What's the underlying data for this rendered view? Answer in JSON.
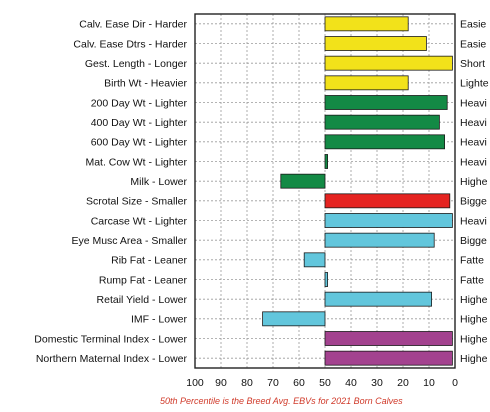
{
  "chart_data": {
    "type": "bar",
    "orientation": "horizontal",
    "x_axis": {
      "reversed": true,
      "xlim": [
        100,
        0
      ],
      "ticks": [
        100,
        90,
        80,
        70,
        60,
        50,
        40,
        30,
        20,
        10,
        0
      ],
      "tick_labels": [
        "100",
        "90",
        "80",
        "70",
        "60",
        "50",
        "40",
        "30",
        "20",
        "10",
        "0"
      ]
    },
    "baseline": 50,
    "grid": true,
    "categories": [
      "Calv. Ease Dir - Harder",
      "Calv. Ease Dtrs - Harder",
      "Gest. Length - Longer",
      "Birth Wt - Heavier",
      "200 Day Wt - Lighter",
      "400 Day Wt - Lighter",
      "600 Day Wt - Lighter",
      "Mat. Cow Wt - Lighter",
      "Milk - Lower",
      "Scrotal Size - Smaller",
      "Carcase Wt - Lighter",
      "Eye Musc Area - Smaller",
      "Rib Fat - Leaner",
      "Rump Fat - Leaner",
      "Retail Yield - Lower",
      "IMF - Lower",
      "Domestic Terminal Index - Lower",
      "Northern Maternal Index - Lower"
    ],
    "right_labels": [
      "Easie",
      "Easie",
      "Short",
      "Lighte",
      "Heavi",
      "Heavi",
      "Heavi",
      "Heavi",
      "Highe",
      "Bigge",
      "Heavi",
      "Bigge",
      "Fatte",
      "Fatte",
      "Highe",
      "Highe",
      "Highe",
      "Highe"
    ],
    "values": [
      18,
      11,
      1,
      18,
      3,
      6,
      4,
      49,
      67,
      2,
      1,
      8,
      58,
      49,
      9,
      74,
      1,
      1
    ],
    "colors": [
      "#f2e21a",
      "#f2e21a",
      "#f2e21a",
      "#f2e21a",
      "#138a45",
      "#138a45",
      "#138a45",
      "#138a45",
      "#138a45",
      "#e52421",
      "#62c6dc",
      "#62c6dc",
      "#62c6dc",
      "#62c6dc",
      "#62c6dc",
      "#62c6dc",
      "#a3428f",
      "#a3428f"
    ],
    "footnote": "50th Percentile is the Breed Avg. EBVs for 2021 Born Calves"
  }
}
